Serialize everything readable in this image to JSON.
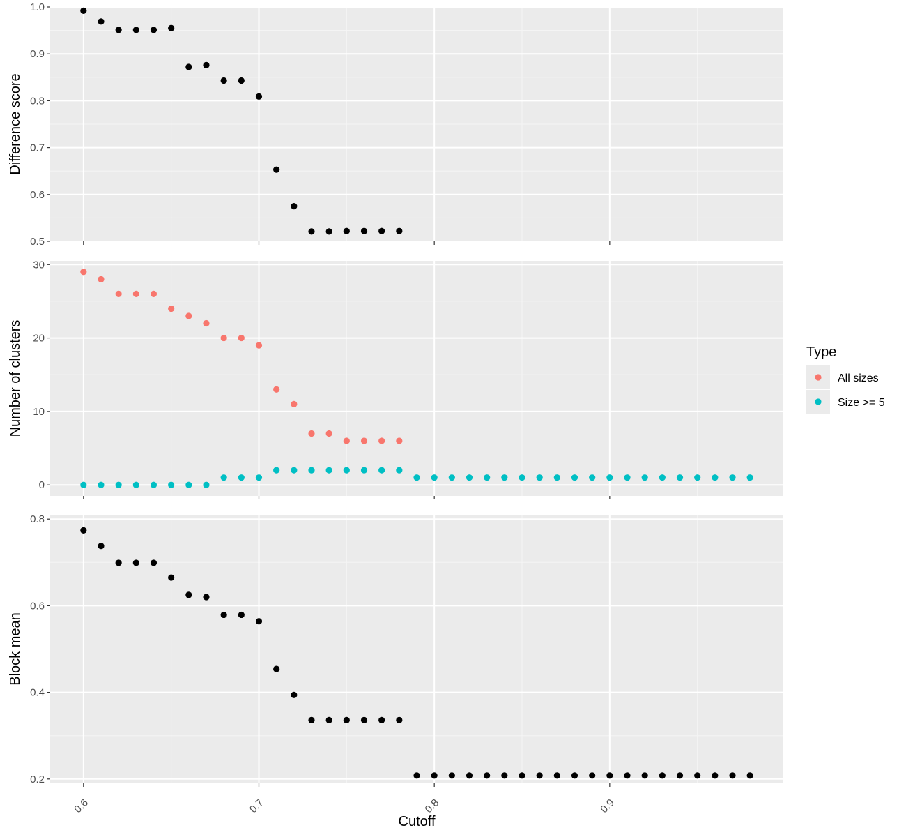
{
  "colors": {
    "panel_background": "#ebebeb",
    "grid_major": "#ffffff",
    "grid_minor": "#f5f5f5",
    "point_black": "#000000",
    "all_sizes": "#f8766d",
    "size_ge_5": "#00bfc4",
    "tick": "#333333"
  },
  "chart_data": [
    {
      "type": "scatter",
      "ylabel": "Difference score",
      "xlim": [
        0.581,
        0.999
      ],
      "ylim": [
        0.5,
        1.0
      ],
      "yticks": [
        0.5,
        0.6,
        0.7,
        0.8,
        0.9,
        1.0
      ],
      "ytick_labels": [
        "0.5",
        "0.6",
        "0.7",
        "0.8",
        "0.9",
        "1.0"
      ],
      "series": [
        {
          "color": "#000000",
          "x": [
            0.6,
            0.61,
            0.62,
            0.63,
            0.64,
            0.65,
            0.66,
            0.67,
            0.68,
            0.69,
            0.7,
            0.71,
            0.72,
            0.73,
            0.74,
            0.75,
            0.76,
            0.77,
            0.78
          ],
          "y": [
            0.992,
            0.969,
            0.951,
            0.951,
            0.951,
            0.955,
            0.872,
            0.876,
            0.843,
            0.843,
            0.809,
            0.653,
            0.575,
            0.521,
            0.521,
            0.522,
            0.522,
            0.522,
            0.522
          ]
        }
      ]
    },
    {
      "type": "scatter",
      "ylabel": "Number of clusters",
      "xlim": [
        0.581,
        0.999
      ],
      "ylim": [
        -1.5,
        30.5
      ],
      "yticks": [
        0,
        10,
        20,
        30
      ],
      "ytick_labels": [
        "0",
        "10",
        "20",
        "30"
      ],
      "legend": {
        "title": "Type",
        "placement": "right",
        "entries": [
          "All sizes",
          "Size >= 5"
        ]
      },
      "series": [
        {
          "name": "All sizes",
          "color": "#f8766d",
          "x": [
            0.6,
            0.61,
            0.62,
            0.63,
            0.64,
            0.65,
            0.66,
            0.67,
            0.68,
            0.69,
            0.7,
            0.71,
            0.72,
            0.73,
            0.74,
            0.75,
            0.76,
            0.77,
            0.78
          ],
          "y": [
            29,
            28,
            26,
            26,
            26,
            24,
            23,
            22,
            20,
            20,
            19,
            13,
            11,
            7,
            7,
            6,
            6,
            6,
            6
          ]
        },
        {
          "name": "Size >= 5",
          "color": "#00bfc4",
          "x": [
            0.6,
            0.61,
            0.62,
            0.63,
            0.64,
            0.65,
            0.66,
            0.67,
            0.68,
            0.69,
            0.7,
            0.71,
            0.72,
            0.73,
            0.74,
            0.75,
            0.76,
            0.77,
            0.78,
            0.79,
            0.8,
            0.81,
            0.82,
            0.83,
            0.84,
            0.85,
            0.86,
            0.87,
            0.88,
            0.89,
            0.9,
            0.91,
            0.92,
            0.93,
            0.94,
            0.95,
            0.96,
            0.97,
            0.98
          ],
          "y": [
            0,
            0,
            0,
            0,
            0,
            0,
            0,
            0,
            1,
            1,
            1,
            2,
            2,
            2,
            2,
            2,
            2,
            2,
            2,
            1,
            1,
            1,
            1,
            1,
            1,
            1,
            1,
            1,
            1,
            1,
            1,
            1,
            1,
            1,
            1,
            1,
            1,
            1,
            1
          ]
        }
      ]
    },
    {
      "type": "scatter",
      "ylabel": "Block mean",
      "xlabel": "Cutoff",
      "xlim": [
        0.581,
        0.999
      ],
      "ylim": [
        0.19,
        0.81
      ],
      "yticks": [
        0.2,
        0.4,
        0.6,
        0.8
      ],
      "ytick_labels": [
        "0.2",
        "0.4",
        "0.6",
        "0.8"
      ],
      "xticks": [
        0.6,
        0.7,
        0.8,
        0.9
      ],
      "xtick_labels": [
        "0.6",
        "0.7",
        "0.8",
        "0.9"
      ],
      "series": [
        {
          "color": "#000000",
          "x": [
            0.6,
            0.61,
            0.62,
            0.63,
            0.64,
            0.65,
            0.66,
            0.67,
            0.68,
            0.69,
            0.7,
            0.71,
            0.72,
            0.73,
            0.74,
            0.75,
            0.76,
            0.77,
            0.78,
            0.79,
            0.8,
            0.81,
            0.82,
            0.83,
            0.84,
            0.85,
            0.86,
            0.87,
            0.88,
            0.89,
            0.9,
            0.91,
            0.92,
            0.93,
            0.94,
            0.95,
            0.96,
            0.97,
            0.98
          ],
          "y": [
            0.774,
            0.738,
            0.699,
            0.699,
            0.699,
            0.665,
            0.625,
            0.62,
            0.579,
            0.579,
            0.564,
            0.454,
            0.394,
            0.336,
            0.336,
            0.336,
            0.336,
            0.336,
            0.336,
            0.208,
            0.208,
            0.208,
            0.208,
            0.208,
            0.208,
            0.208,
            0.208,
            0.208,
            0.208,
            0.208,
            0.208,
            0.208,
            0.208,
            0.208,
            0.208,
            0.208,
            0.208,
            0.208,
            0.208
          ]
        }
      ]
    }
  ]
}
